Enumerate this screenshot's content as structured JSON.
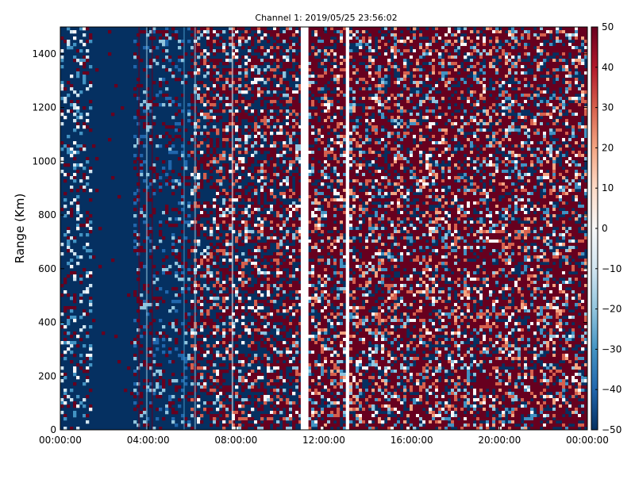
{
  "chart_data": {
    "type": "heatmap",
    "title": "Channel 1: 2019/05/25 23:56:02",
    "xlabel": "",
    "ylabel": "Range (Km)",
    "x_tick_labels": [
      "00:00:00",
      "04:00:00",
      "08:00:00",
      "12:00:00",
      "16:00:00",
      "20:00:00",
      "00:00:00"
    ],
    "x_range_hours": [
      0,
      24
    ],
    "y_ticks": [
      0,
      200,
      400,
      600,
      800,
      1000,
      1200,
      1400
    ],
    "ylim": [
      0,
      1500
    ],
    "colorbar": {
      "colormap": "RdBu_r",
      "range": [
        -50,
        50
      ],
      "ticks": [
        50,
        40,
        30,
        20,
        10,
        0,
        -10,
        -20,
        -30,
        -40,
        -50
      ],
      "tick_labels": [
        "50",
        "40",
        "30",
        "20",
        "10",
        "0",
        "−10",
        "−20",
        "−30",
        "−40",
        "−50"
      ],
      "colors": [
        "#053061",
        "#2166ac",
        "#4393c3",
        "#92c5de",
        "#d1e5f0",
        "#f7f7f7",
        "#fddbc7",
        "#f4a582",
        "#d6604d",
        "#b2182b",
        "#67001f"
      ]
    },
    "data_gaps_hours": [
      [
        10.95,
        11.3
      ],
      [
        13.0,
        13.15
      ]
    ],
    "regions": [
      {
        "hours": [
          0,
          1.5
        ],
        "character": "mostly low (blue) with scattered high values"
      },
      {
        "hours": [
          1.5,
          3.3
        ],
        "character": "uniform low, about -50 (dark blue)"
      },
      {
        "hours": [
          3.3,
          6.0
        ],
        "character": "mostly low with dark red vertical streaks"
      },
      {
        "hours": [
          6.0,
          10.95
        ],
        "character": "mixed, increasing high (red) fraction"
      },
      {
        "hours": [
          11.3,
          24
        ],
        "character": "noisy mix of high and low, mostly red"
      }
    ],
    "grid": false
  }
}
